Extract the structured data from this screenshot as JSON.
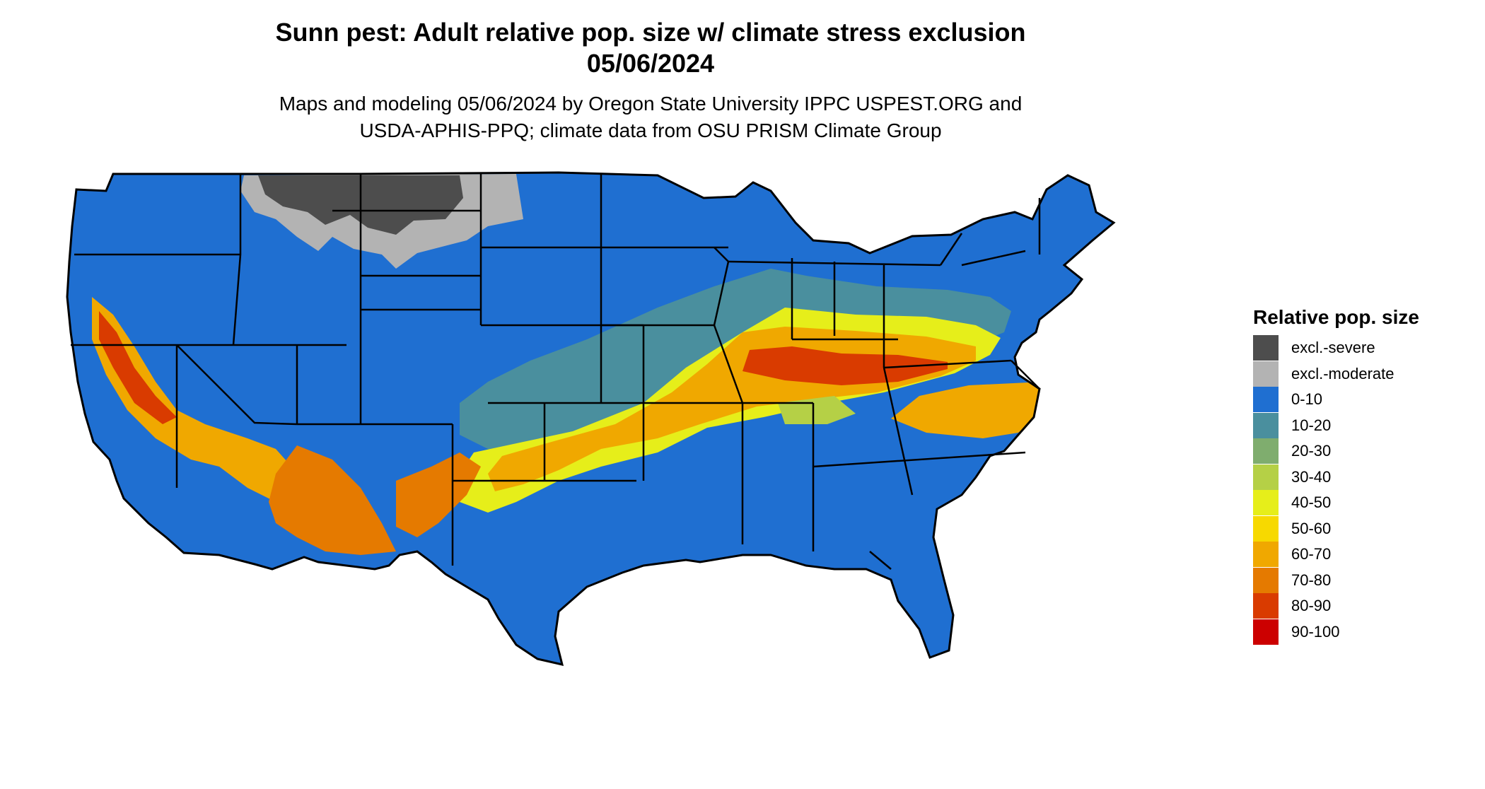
{
  "header": {
    "title": "Sunn pest: Adult relative pop. size w/ climate stress exclusion",
    "date": "05/06/2024",
    "subtitle_line1": "Maps and modeling 05/06/2024 by Oregon State University IPPC USPEST.ORG and",
    "subtitle_line2": "USDA-APHIS-PPQ; climate data from OSU PRISM Climate Group"
  },
  "legend": {
    "title": "Relative pop. size",
    "items": [
      {
        "label": "excl.-severe",
        "color": "#4d4d4d"
      },
      {
        "label": "excl.-moderate",
        "color": "#b3b3b3"
      },
      {
        "label": "0-10",
        "color": "#1f6fd1"
      },
      {
        "label": "10-20",
        "color": "#4a8f9e"
      },
      {
        "label": "20-30",
        "color": "#7fad6e"
      },
      {
        "label": "30-40",
        "color": "#b5d046"
      },
      {
        "label": "40-50",
        "color": "#e6ee1a"
      },
      {
        "label": "50-60",
        "color": "#f7d900"
      },
      {
        "label": "60-70",
        "color": "#f0a800"
      },
      {
        "label": "70-80",
        "color": "#e57a00"
      },
      {
        "label": "80-90",
        "color": "#d93b00"
      },
      {
        "label": "90-100",
        "color": "#cc0000"
      }
    ]
  }
}
